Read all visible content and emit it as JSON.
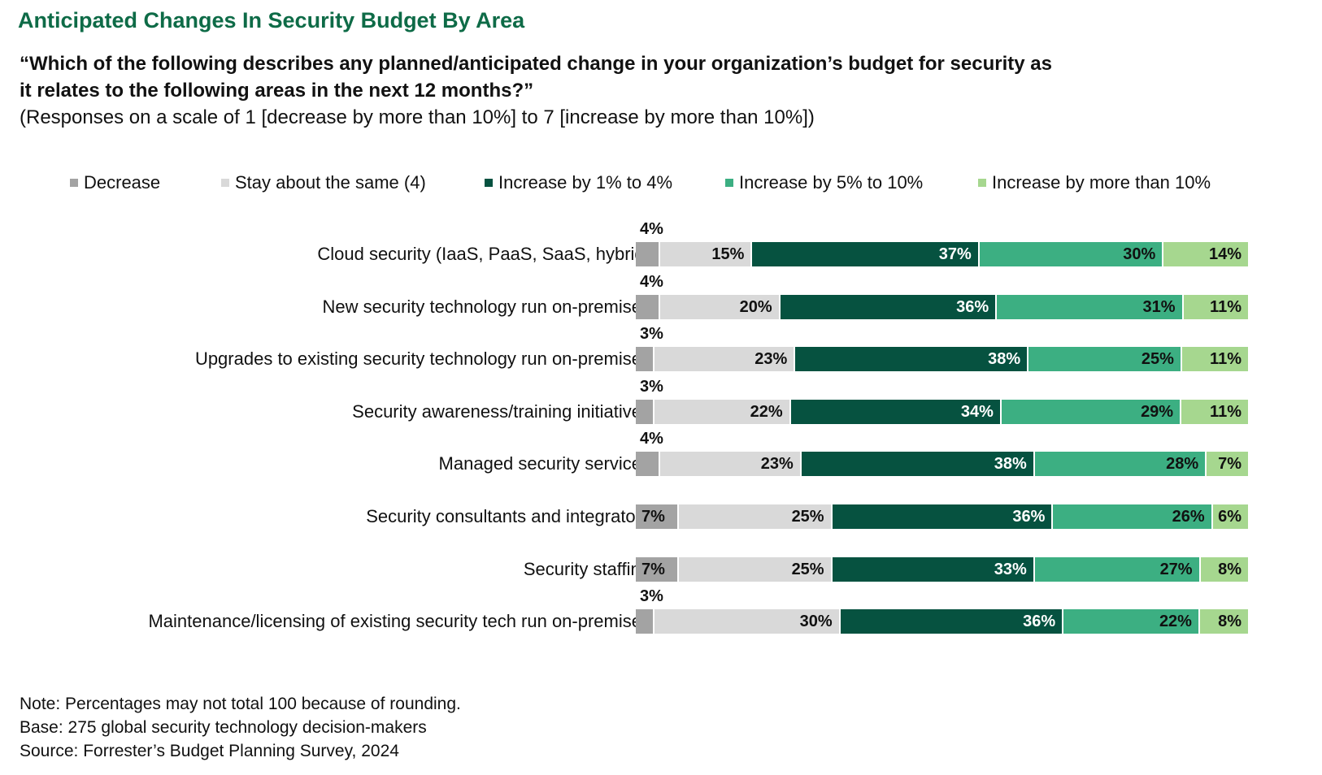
{
  "title": "Anticipated Changes In Security Budget By Area",
  "question_line1": "“Which of the following describes any planned/anticipated change in your organization’s budget for security as",
  "question_line2": "it relates to the following areas in the next 12 months?”",
  "scale_note": "(Responses on a scale of 1 [decrease by more than 10%] to 7 [increase by more than 10%])",
  "notes": {
    "note": "Note: Percentages may not total 100 because of rounding.",
    "base": "Base: 275 global security technology decision-makers",
    "source": "Source: Forrester’s Budget Planning Survey, 2024"
  },
  "chart_data": {
    "type": "bar",
    "orientation": "horizontal",
    "stacked": true,
    "legend_position": "top",
    "categories": [
      "Cloud security (IaaS, PaaS, SaaS, hybrid)",
      "New security technology run on-premises",
      "Upgrades to existing security technology run on-premises",
      "Security awareness/training initiatives",
      "Managed security services",
      "Security consultants and integrators",
      "Security staffing",
      "Maintenance/licensing of existing security tech run on-premises"
    ],
    "series": [
      {
        "name": "Decrease",
        "color": "#a3a3a3",
        "text_color": "#111111",
        "values": [
          4,
          4,
          3,
          3,
          4,
          7,
          7,
          3
        ]
      },
      {
        "name": "Stay about the same (4)",
        "color": "#d9d9d9",
        "text_color": "#111111",
        "values": [
          15,
          20,
          23,
          22,
          23,
          25,
          25,
          30
        ]
      },
      {
        "name": "Increase by 1% to 4%",
        "color": "#065240",
        "text_color": "#ffffff",
        "values": [
          37,
          36,
          38,
          34,
          38,
          36,
          33,
          36
        ]
      },
      {
        "name": "Increase by 5% to 10%",
        "color": "#3caf82",
        "text_color": "#111111",
        "values": [
          30,
          31,
          25,
          29,
          28,
          26,
          27,
          22
        ]
      },
      {
        "name": "Increase by more than 10%",
        "color": "#a6d78f",
        "text_color": "#111111",
        "values": [
          14,
          11,
          11,
          11,
          7,
          6,
          8,
          8
        ]
      }
    ],
    "value_suffix": "%"
  }
}
